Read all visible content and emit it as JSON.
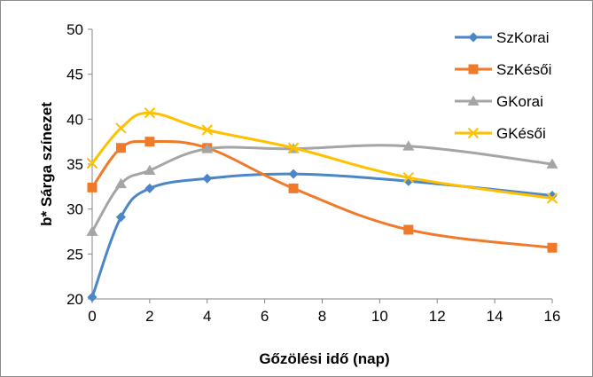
{
  "chart_data": {
    "type": "line",
    "title": "",
    "xlabel": "Gőzölési idő (nap)",
    "ylabel": "b* Sárga színezet",
    "xlim": [
      0,
      16
    ],
    "ylim": [
      20,
      50
    ],
    "x_ticks": [
      0,
      2,
      4,
      6,
      8,
      10,
      12,
      14,
      16
    ],
    "y_ticks": [
      20,
      25,
      30,
      35,
      40,
      45,
      50
    ],
    "grid": false,
    "legend_position": "top-right",
    "series": [
      {
        "name": "SzKorai",
        "color": "#4a86c8",
        "marker": "diamond",
        "x": [
          0,
          1,
          2,
          4,
          7,
          11,
          16
        ],
        "y": [
          20.2,
          29.1,
          32.3,
          33.4,
          33.9,
          33.1,
          31.5
        ]
      },
      {
        "name": "SzKésői",
        "color": "#f07a2a",
        "marker": "square",
        "x": [
          0,
          1,
          2,
          4,
          7,
          11,
          16
        ],
        "y": [
          32.4,
          36.8,
          37.5,
          36.8,
          32.3,
          27.7,
          25.7
        ]
      },
      {
        "name": "GKorai",
        "color": "#a5a5a5",
        "marker": "triangle",
        "x": [
          0,
          1,
          2,
          4,
          7,
          11,
          16
        ],
        "y": [
          27.5,
          32.8,
          34.3,
          36.7,
          36.7,
          37.0,
          35.0
        ]
      },
      {
        "name": "GKésői",
        "color": "#ffc000",
        "marker": "x",
        "x": [
          0,
          1,
          2,
          4,
          7,
          11,
          16
        ],
        "y": [
          35.1,
          39.0,
          40.7,
          38.8,
          36.8,
          33.5,
          31.2
        ]
      }
    ]
  }
}
